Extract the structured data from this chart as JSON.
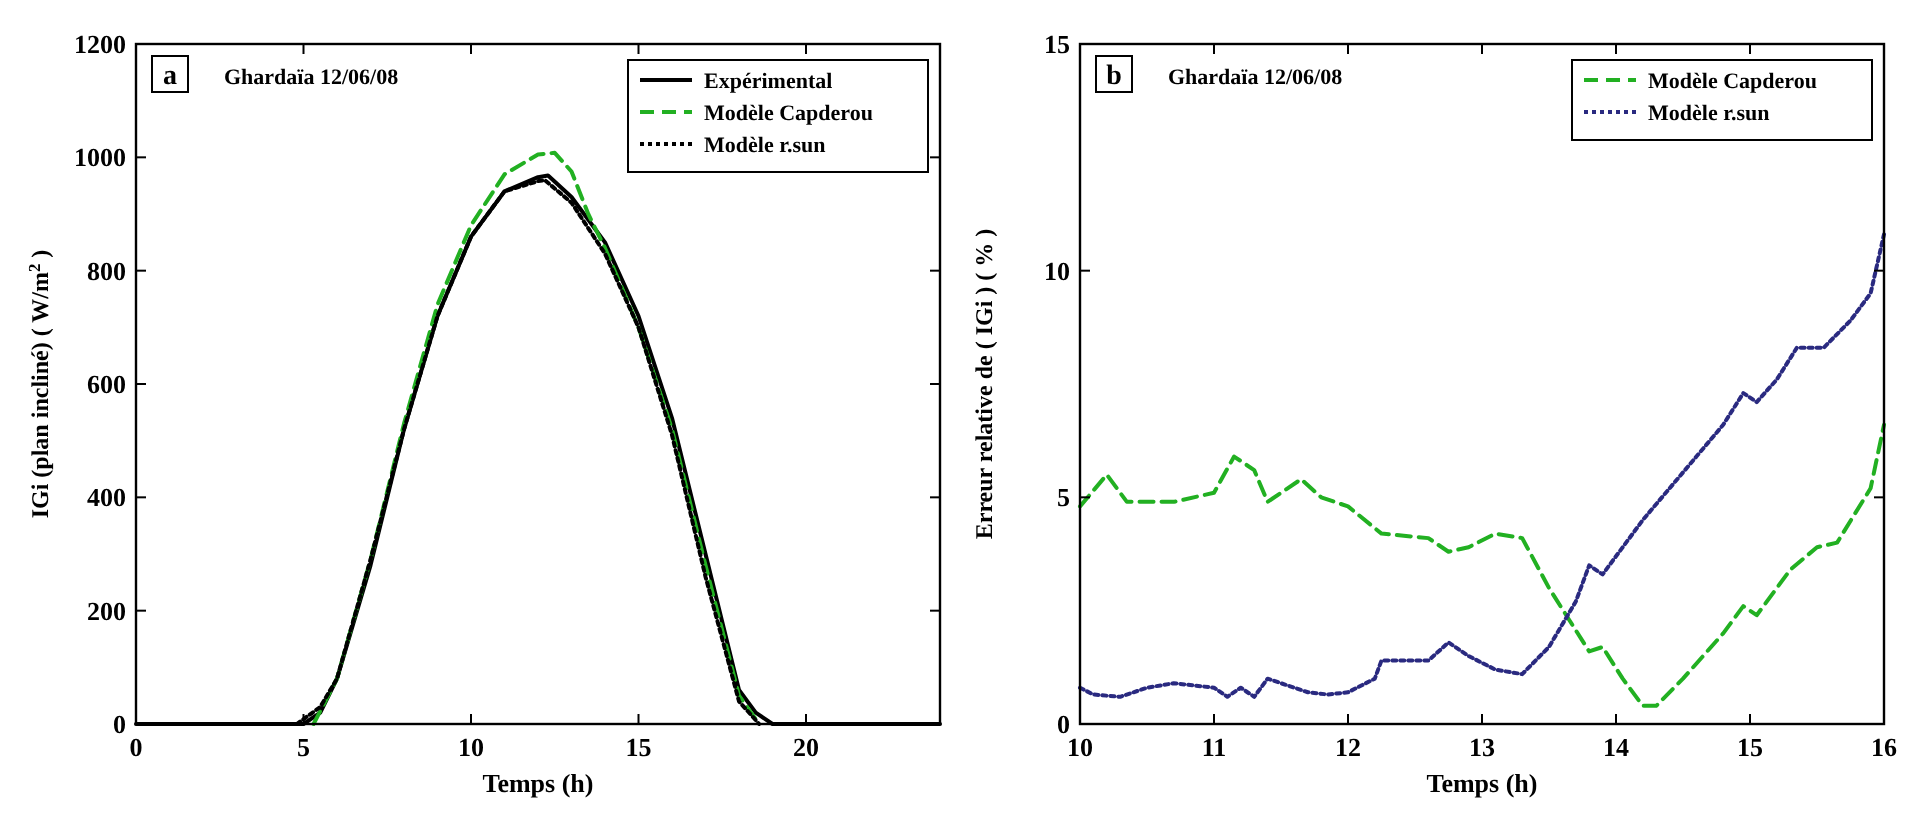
{
  "chart_data": [
    {
      "type": "line",
      "xlabel": "Temps (h)",
      "ylabel": "IGi (plan incliné) ( W/m$^{2}$ )",
      "annotations": [
        "a",
        "Ghardaïa 12/06/08"
      ],
      "xlim": [
        0,
        24
      ],
      "xticks": [
        0,
        5,
        10,
        15,
        20
      ],
      "ylim": [
        0,
        1200
      ],
      "yticks": [
        0,
        200,
        400,
        600,
        800,
        1000,
        1200
      ],
      "grid": false,
      "legend": "top right",
      "series": [
        {
          "name": "Expérimental",
          "color": "#000000",
          "line_style": "solid",
          "x": [
            0,
            4.5,
            5,
            5.5,
            6,
            7,
            8,
            9,
            10,
            11,
            12,
            12.3,
            13,
            14,
            15,
            16,
            17,
            18,
            18.5,
            19,
            19.5,
            24
          ],
          "values": [
            0,
            0,
            0,
            20,
            80,
            280,
            520,
            720,
            860,
            940,
            965,
            968,
            930,
            850,
            720,
            540,
            300,
            60,
            20,
            0,
            0,
            0
          ]
        },
        {
          "name": "Modèle Capderou",
          "color": "#22b022",
          "line_style": "dashed",
          "x": [
            5.3,
            6,
            7,
            8,
            9,
            10,
            11,
            12,
            12.5,
            13,
            13.5,
            14,
            15,
            16,
            17,
            18,
            18.6
          ],
          "values": [
            0,
            80,
            290,
            530,
            740,
            880,
            970,
            1005,
            1008,
            975,
            900,
            840,
            700,
            520,
            280,
            50,
            0
          ]
        },
        {
          "name": "Modèle r.sun",
          "color": "#000000",
          "line_style": "dotted",
          "x": [
            4.8,
            5.5,
            6,
            7,
            8,
            9,
            10,
            11,
            12,
            12.2,
            13,
            14,
            15,
            16,
            17,
            18,
            18.6
          ],
          "values": [
            0,
            30,
            80,
            290,
            520,
            720,
            860,
            940,
            958,
            960,
            920,
            830,
            700,
            510,
            260,
            40,
            0
          ]
        }
      ]
    },
    {
      "type": "line",
      "xlabel": "Temps (h)",
      "ylabel": "Erreur relative de ( IGi ) ( % )",
      "annotations": [
        "b",
        "Ghardaïa 12/06/08"
      ],
      "xlim": [
        10,
        16
      ],
      "xticks": [
        10,
        11,
        12,
        13,
        14,
        15,
        16
      ],
      "ylim": [
        0,
        15
      ],
      "yticks": [
        0,
        5,
        10,
        15
      ],
      "grid": false,
      "legend": "top right",
      "series": [
        {
          "name": "Modèle Capderou",
          "color": "#22b022",
          "line_style": "dashed",
          "x": [
            10,
            10.2,
            10.35,
            10.7,
            11,
            11.15,
            11.3,
            11.4,
            11.65,
            11.8,
            12,
            12.25,
            12.6,
            12.75,
            12.9,
            13.1,
            13.3,
            13.5,
            13.65,
            13.8,
            13.9,
            14.05,
            14.2,
            14.3,
            14.5,
            14.8,
            14.95,
            15.05,
            15.3,
            15.5,
            15.65,
            15.9,
            16
          ],
          "values": [
            4.8,
            5.5,
            4.9,
            4.9,
            5.1,
            5.9,
            5.6,
            4.9,
            5.4,
            5.0,
            4.8,
            4.2,
            4.1,
            3.8,
            3.9,
            4.2,
            4.1,
            3.0,
            2.3,
            1.6,
            1.7,
            1.0,
            0.4,
            0.4,
            1.0,
            2.0,
            2.6,
            2.4,
            3.4,
            3.9,
            4.0,
            5.2,
            6.6
          ]
        },
        {
          "name": "Modèle r.sun",
          "color": "#2a2a80",
          "line_style": "dotted",
          "x": [
            10,
            10.1,
            10.3,
            10.5,
            10.7,
            11,
            11.1,
            11.2,
            11.3,
            11.4,
            11.7,
            11.85,
            12,
            12.2,
            12.25,
            12.6,
            12.75,
            12.9,
            13.1,
            13.3,
            13.5,
            13.7,
            13.8,
            13.9,
            14.2,
            14.4,
            14.6,
            14.8,
            14.95,
            15.05,
            15.2,
            15.35,
            15.55,
            15.75,
            15.9,
            16
          ],
          "values": [
            0.8,
            0.65,
            0.6,
            0.8,
            0.9,
            0.8,
            0.6,
            0.8,
            0.6,
            1.0,
            0.7,
            0.65,
            0.7,
            1.0,
            1.4,
            1.4,
            1.8,
            1.5,
            1.2,
            1.1,
            1.7,
            2.7,
            3.5,
            3.3,
            4.5,
            5.2,
            5.9,
            6.6,
            7.3,
            7.1,
            7.6,
            8.3,
            8.3,
            8.9,
            9.5,
            10.8
          ]
        }
      ]
    }
  ]
}
